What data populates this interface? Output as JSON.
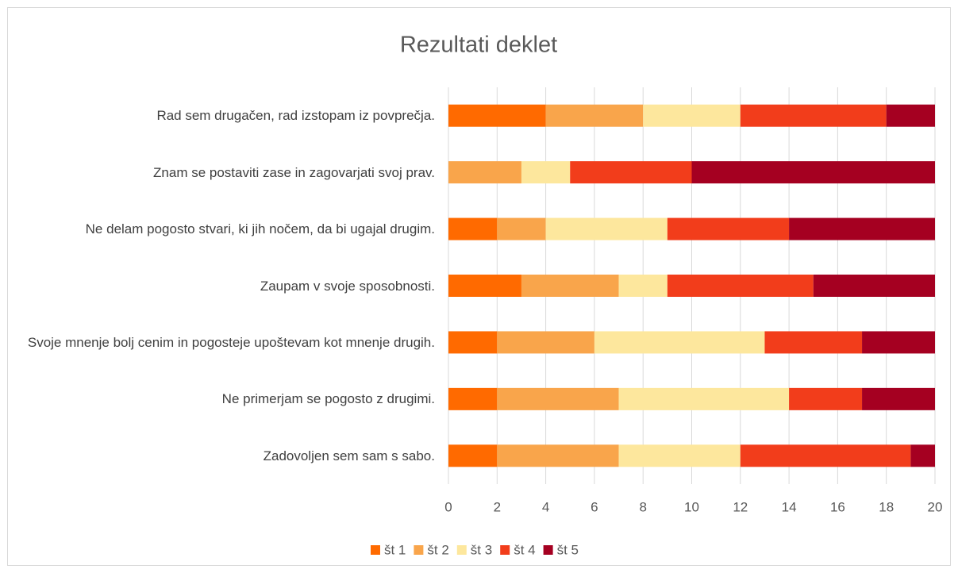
{
  "chart_data": {
    "type": "stacked-barh",
    "title": "Rezultati deklet",
    "categories": [
      "Rad sem drugačen, rad izstopam iz povprečja.",
      "Znam se postaviti zase in zagovarjati svoj prav.",
      "Ne delam pogosto stvari, ki jih nočem, da bi ugajal drugim.",
      "Zaupam v svoje sposobnosti.",
      "Svoje mnenje bolj cenim in pogosteje upoštevam kot mnenje drugih.",
      "Ne primerjam se pogosto z drugimi.",
      "Zadovoljen sem sam s sabo."
    ],
    "series": [
      {
        "name": "št 1",
        "color": "#ff6a00",
        "values": [
          4,
          0,
          2,
          3,
          2,
          2,
          2
        ]
      },
      {
        "name": "št 2",
        "color": "#f9a54b",
        "values": [
          4,
          3,
          2,
          4,
          4,
          5,
          5
        ]
      },
      {
        "name": "št 3",
        "color": "#fde79d",
        "values": [
          4,
          2,
          5,
          2,
          7,
          7,
          5
        ]
      },
      {
        "name": "št 4",
        "color": "#f23d1b",
        "values": [
          6,
          5,
          5,
          6,
          4,
          3,
          7
        ]
      },
      {
        "name": "št 5",
        "color": "#a50021",
        "values": [
          2,
          10,
          6,
          5,
          3,
          3,
          1
        ]
      }
    ],
    "xlim": [
      0,
      20
    ],
    "xticks": [
      0,
      2,
      4,
      6,
      8,
      10,
      12,
      14,
      16,
      18,
      20
    ],
    "grid": true,
    "legend": "bottom"
  }
}
